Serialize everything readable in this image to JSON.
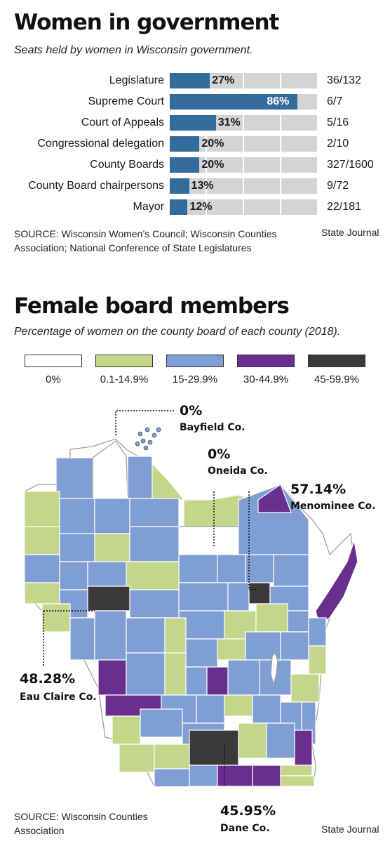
{
  "chart_data": [
    {
      "type": "bar",
      "title": "Women in government",
      "subtitle": "Seats held by women in Wisconsin government.",
      "categories": [
        "Legislature",
        "Supreme Court",
        "Court of Appeals",
        "Congressional delegation",
        "County Boards",
        "County Board chairpersons",
        "Mayor"
      ],
      "values": [
        27,
        86,
        31,
        20,
        20,
        13,
        12
      ],
      "value_labels": [
        "27%",
        "86%",
        "31%",
        "20%",
        "20%",
        "13%",
        "12%"
      ],
      "ratios": [
        "36/132",
        "6/7",
        "5/16",
        "2/10",
        "327/1600",
        "9/72",
        "22/181"
      ],
      "ylim": [
        0,
        100
      ],
      "colors": {
        "fill": "#336b9c",
        "track": "#d3d4d6"
      },
      "source": "SOURCE: Wisconsin Women’s Council; Wisconsin Counties Association; National Conference of State Legislatures",
      "credit": "State Journal"
    },
    {
      "type": "heatmap",
      "title": "Female board members",
      "subtitle": "Percentage of women on the county board of each county (2018).",
      "legend": [
        {
          "label": "0%",
          "color": "#ffffff"
        },
        {
          "label": "0.1-14.9%",
          "color": "#c5d68a"
        },
        {
          "label": "15-29.9%",
          "color": "#7f9ed4"
        },
        {
          "label": "30-44.9%",
          "color": "#6a2e8e"
        },
        {
          "label": "45-59.9%",
          "color": "#3a3a3c"
        }
      ],
      "annotations": [
        {
          "value": "0%",
          "county": "Bayfield Co."
        },
        {
          "value": "0%",
          "county": "Oneida Co."
        },
        {
          "value": "57.14%",
          "county": "Menominee Co."
        },
        {
          "value": "48.28%",
          "county": "Eau Claire Co."
        },
        {
          "value": "45.95%",
          "county": "Dane Co."
        }
      ],
      "source": "SOURCE: Wisconsin Counties Association",
      "credit": "State Journal"
    }
  ]
}
